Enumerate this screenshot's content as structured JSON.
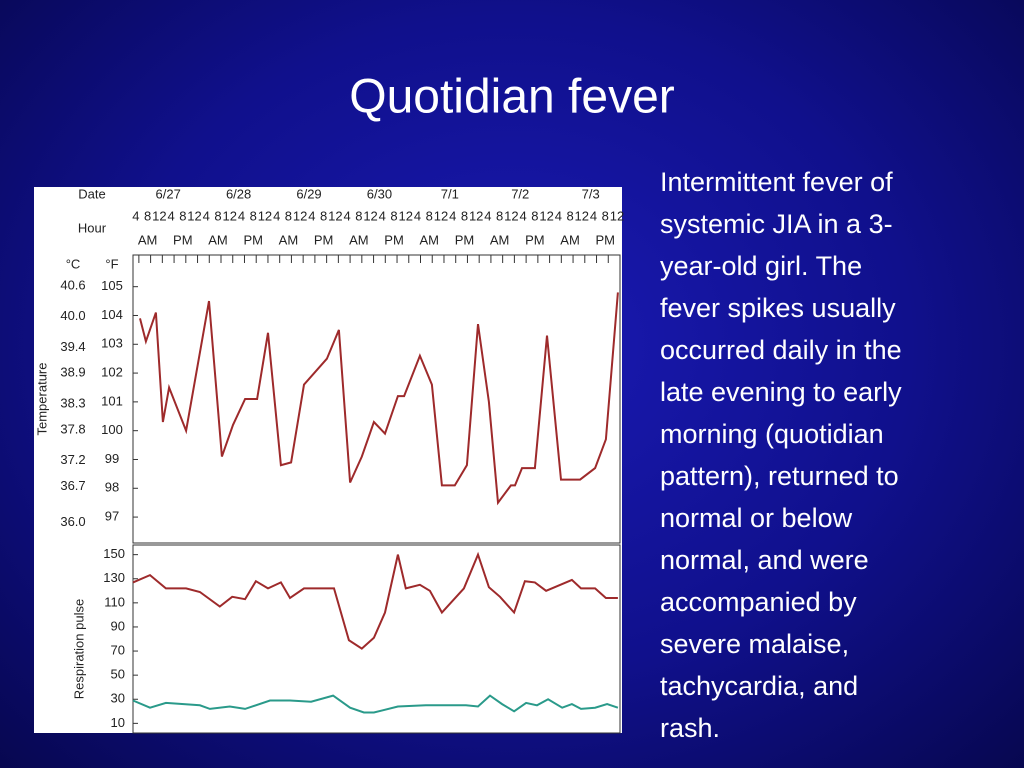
{
  "title": "Quotidian fever",
  "body": [
    "Intermittent fever of",
    "systemic JIA in a 3-",
    "year-old girl. The",
    "fever spikes usually",
    "occurred daily in the",
    "late evening to early",
    "morning (quotidian",
    "pattern), returned to",
    "normal or below",
    "normal, and were",
    "accompanied by",
    "severe malaise,",
    "tachycardia, and",
    "rash."
  ],
  "chart_data": [
    {
      "type": "line",
      "date_label": "Date",
      "hour_label": "Hour",
      "dates": [
        "6/27",
        "6/28",
        "6/29",
        "6/30",
        "7/1",
        "7/2",
        "7/3"
      ],
      "periods": [
        "AM",
        "PM"
      ],
      "y_label": "Temperature",
      "y_unit": "°F",
      "y2_unit": "°C",
      "xlim": [
        2,
        168
      ],
      "xticks": [
        4,
        8,
        12,
        {
          "value": 16,
          "label": "4"
        },
        {
          "value": 20,
          "label": "8"
        },
        {
          "value": 24,
          "label": "12"
        },
        {
          "value": 28,
          "label": "4"
        },
        {
          "value": 32,
          "label": "8"
        },
        {
          "value": 36,
          "label": "12"
        },
        {
          "value": 40,
          "label": "4"
        },
        {
          "value": 44,
          "label": "8"
        },
        {
          "value": 48,
          "label": "12"
        },
        {
          "value": 52,
          "label": "4"
        },
        {
          "value": 56,
          "label": "8"
        },
        {
          "value": 60,
          "label": "12"
        },
        {
          "value": 64,
          "label": "4"
        },
        {
          "value": 68,
          "label": "8"
        },
        {
          "value": 72,
          "label": "12"
        },
        {
          "value": 76,
          "label": "4"
        },
        {
          "value": 80,
          "label": "8"
        },
        {
          "value": 84,
          "label": "12"
        },
        {
          "value": 88,
          "label": "4"
        },
        {
          "value": 92,
          "label": "8"
        },
        {
          "value": 96,
          "label": "12"
        },
        {
          "value": 100,
          "label": "4"
        },
        {
          "value": 104,
          "label": "8"
        },
        {
          "value": 108,
          "label": "12"
        },
        {
          "value": 112,
          "label": "4"
        },
        {
          "value": 116,
          "label": "8"
        },
        {
          "value": 120,
          "label": "12"
        },
        {
          "value": 124,
          "label": "4"
        },
        {
          "value": 128,
          "label": "8"
        },
        {
          "value": 132,
          "label": "12"
        },
        {
          "value": 136,
          "label": "4"
        },
        {
          "value": 140,
          "label": "8"
        },
        {
          "value": 144,
          "label": "12"
        },
        {
          "value": 148,
          "label": "4"
        },
        {
          "value": 152,
          "label": "8"
        },
        {
          "value": 156,
          "label": "12"
        },
        {
          "value": 160,
          "label": "4"
        },
        {
          "value": 164,
          "label": "8"
        },
        {
          "value": 168,
          "label": "12"
        }
      ],
      "ylim": [
        96.1,
        106.1
      ],
      "yticks": [
        97,
        98,
        99,
        100,
        101,
        102,
        103,
        104,
        105
      ],
      "y2lim": [
        35.6,
        41.2
      ],
      "y2ticks": [
        {
          "value": 36,
          "label": "36.0"
        },
        36.7,
        37.2,
        37.8,
        38.3,
        38.9,
        39.4,
        {
          "value": 40,
          "label": "40.0"
        },
        40.6
      ],
      "series": [
        {
          "color": "#9e2a2b",
          "x": [
            4.4,
            6.4,
            9.8,
            12.2,
            14.3,
            20.1,
            27.9,
            32.3,
            36.1,
            40.2,
            44.3,
            48.0,
            52.4,
            55.9,
            60.3,
            68.1,
            72.2,
            76.0,
            80.0,
            84.1,
            87.9,
            92.3,
            94.4,
            99.8,
            103.9,
            107.3,
            111.7,
            115.8,
            119.6,
            123.3,
            126.4,
            130.8,
            132.2,
            134.6,
            139.0,
            143.1,
            147.9,
            154.4,
            159.5,
            163.2,
            167.3
          ],
          "values": [
            103.9,
            103.1,
            104.1,
            100.3,
            101.5,
            100.0,
            104.5,
            99.1,
            100.2,
            101.1,
            101.1,
            103.4,
            98.8,
            98.9,
            101.6,
            102.5,
            103.5,
            98.2,
            99.1,
            100.3,
            99.9,
            101.2,
            101.2,
            102.6,
            101.6,
            98.1,
            98.1,
            98.8,
            103.7,
            101.0,
            97.5,
            98.1,
            98.1,
            98.7,
            98.7,
            103.3,
            98.3,
            98.3,
            98.7,
            99.7,
            104.8
          ]
        }
      ]
    },
    {
      "type": "line",
      "y_label": "Respiration pulse",
      "xlim": [
        2,
        168
      ],
      "ylim": [
        2,
        158
      ],
      "yticks": [
        10,
        30,
        50,
        70,
        90,
        110,
        130,
        150
      ],
      "series": [
        {
          "color": "#9e2a2b",
          "x": [
            2.0,
            7.8,
            13.2,
            20.1,
            24.8,
            31.6,
            35.8,
            40.2,
            43.9,
            48.0,
            52.4,
            55.5,
            60.3,
            70.5,
            75.6,
            80.0,
            84.1,
            87.9,
            92.3,
            95.0,
            99.8,
            103.2,
            107.3,
            114.8,
            119.6,
            123.3,
            127.1,
            131.9,
            135.6,
            139.0,
            142.8,
            151.6,
            154.7,
            159.5,
            163.2,
            167.3
          ],
          "values": [
            127,
            133,
            122,
            122,
            119,
            107,
            115,
            113,
            128,
            122,
            127,
            114,
            122,
            122,
            79,
            72,
            81,
            102,
            150,
            122,
            125,
            120,
            102,
            122,
            150,
            123,
            115,
            102,
            128,
            127,
            120,
            129,
            122,
            122,
            114,
            114
          ]
        },
        {
          "color": "#2a9a8a",
          "x": [
            2.0,
            7.8,
            13.2,
            24.8,
            28.2,
            35.0,
            40.2,
            48.7,
            55.5,
            62.7,
            70.2,
            76.0,
            80.7,
            84.1,
            92.3,
            101.8,
            110.7,
            115.5,
            119.6,
            123.7,
            127.8,
            131.9,
            136.0,
            139.7,
            143.5,
            148.3,
            151.6,
            154.7,
            159.5,
            163.6,
            167.3
          ],
          "values": [
            29,
            23,
            27,
            25,
            22,
            24,
            22,
            29,
            29,
            28,
            33,
            23,
            19,
            19,
            24,
            25,
            25,
            25,
            24,
            33,
            26,
            20,
            27,
            25,
            30,
            23,
            26,
            22,
            23,
            26,
            23
          ]
        }
      ]
    }
  ]
}
